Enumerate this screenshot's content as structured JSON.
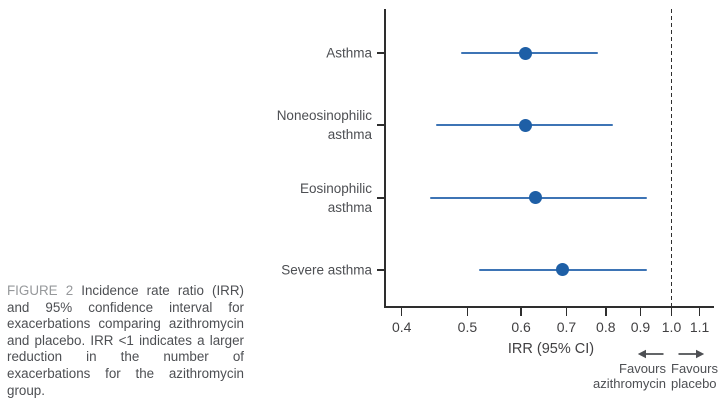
{
  "caption": {
    "label": "FIGURE 2",
    "text": "Incidence rate ratio (IRR) and 95% confidence interval for exacerbations comparing azithromycin and placebo. IRR <1 indicates a larger reduction in the number of exacerbations for the azithromycin group."
  },
  "chart_data": {
    "type": "scatter",
    "subtype": "forest-plot",
    "title": "",
    "xlabel": "IRR (95% CI)",
    "ylabel": "",
    "x_scale": "log",
    "xlim": [
      0.38,
      1.15
    ],
    "grid": false,
    "reference_line_x": 1.0,
    "x_ticks": [
      "0.4",
      "0.5",
      "0.6",
      "0.7",
      "0.8",
      "0.9",
      "1.0",
      "1.1"
    ],
    "categories": [
      "Asthma",
      "Noneosinophilic\nasthma",
      "Eosinophilic\nasthma",
      "Severe asthma"
    ],
    "points": [
      {
        "label": "Asthma",
        "irr": 0.61,
        "ci_low": 0.49,
        "ci_high": 0.78
      },
      {
        "label": "Noneosinophilic asthma",
        "irr": 0.61,
        "ci_low": 0.45,
        "ci_high": 0.82
      },
      {
        "label": "Eosinophilic asthma",
        "irr": 0.63,
        "ci_low": 0.44,
        "ci_high": 0.92
      },
      {
        "label": "Severe asthma",
        "irr": 0.69,
        "ci_low": 0.52,
        "ci_high": 0.92
      }
    ],
    "favours_left": "Favours\nazithromycin",
    "favours_right": "Favours\nplacebo"
  },
  "colors": {
    "marker": "#1e5fa6",
    "ci_line": "#3d74b5",
    "axis": "#2e2e2e",
    "label_text": "#4d4f53",
    "tick_text": "#414042",
    "caption_label": "#96989b"
  }
}
